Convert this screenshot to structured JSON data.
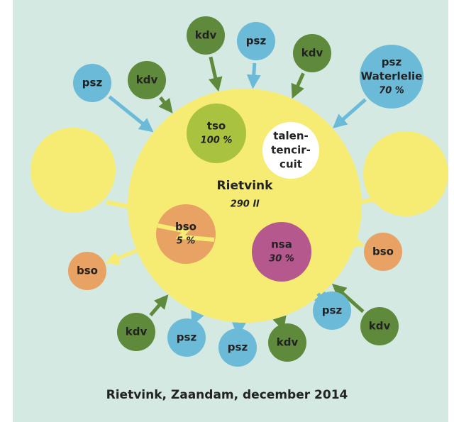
{
  "title": "Rietvink, Zaandam, december 2014",
  "center": {
    "label": "Rietvink",
    "value": "290 ll"
  },
  "nodes": [
    {
      "label": "tso",
      "value": "100 %"
    },
    {
      "lines": [
        "talen-",
        "tencir-",
        "cuit"
      ]
    },
    {
      "label": "bso",
      "value": "5 %"
    },
    {
      "label": "nsa",
      "value": "30 %"
    },
    {
      "label": "kdv"
    },
    {
      "label": "psz"
    },
    {
      "label": "kdv"
    },
    {
      "label": "psz",
      "sublabel": "Waterlelie",
      "value": "70 %"
    },
    {
      "label": "psz"
    },
    {
      "label": "kdv"
    },
    {
      "label": "bso"
    },
    {
      "label": "bso"
    },
    {
      "label": "kdv"
    },
    {
      "label": "psz"
    },
    {
      "label": "kdv"
    },
    {
      "label": "psz"
    },
    {
      "label": "psz"
    },
    {
      "label": "kdv"
    }
  ]
}
